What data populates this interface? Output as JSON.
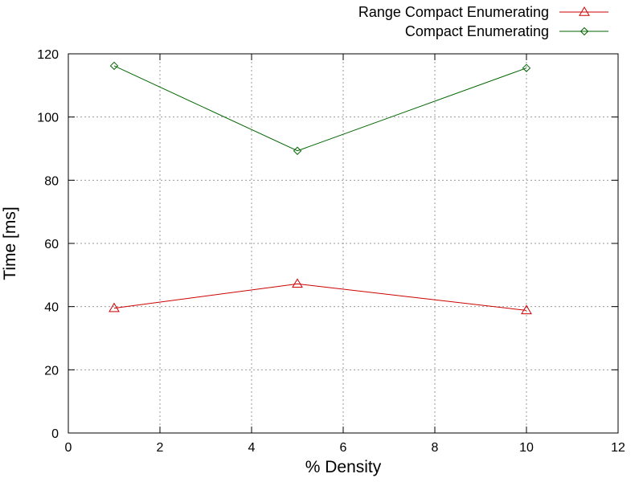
{
  "chart_data": {
    "type": "line",
    "title": "",
    "xlabel": "% Density",
    "ylabel": "Time [ms]",
    "xlim": [
      0,
      12
    ],
    "ylim": [
      0,
      120
    ],
    "xticks": [
      0,
      2,
      4,
      6,
      8,
      10,
      12
    ],
    "yticks": [
      0,
      20,
      40,
      60,
      80,
      100,
      120
    ],
    "grid": true,
    "legend_position": "top-right",
    "x": [
      1,
      5,
      10
    ],
    "series": [
      {
        "name": "Range Compact Enumerating",
        "values": [
          39.5,
          47.2,
          38.8
        ],
        "color": "#cc0000",
        "marker": "triangle"
      },
      {
        "name": "Compact Enumerating",
        "values": [
          116.2,
          89.3,
          115.5
        ],
        "color": "#006600",
        "marker": "diamond"
      }
    ]
  }
}
